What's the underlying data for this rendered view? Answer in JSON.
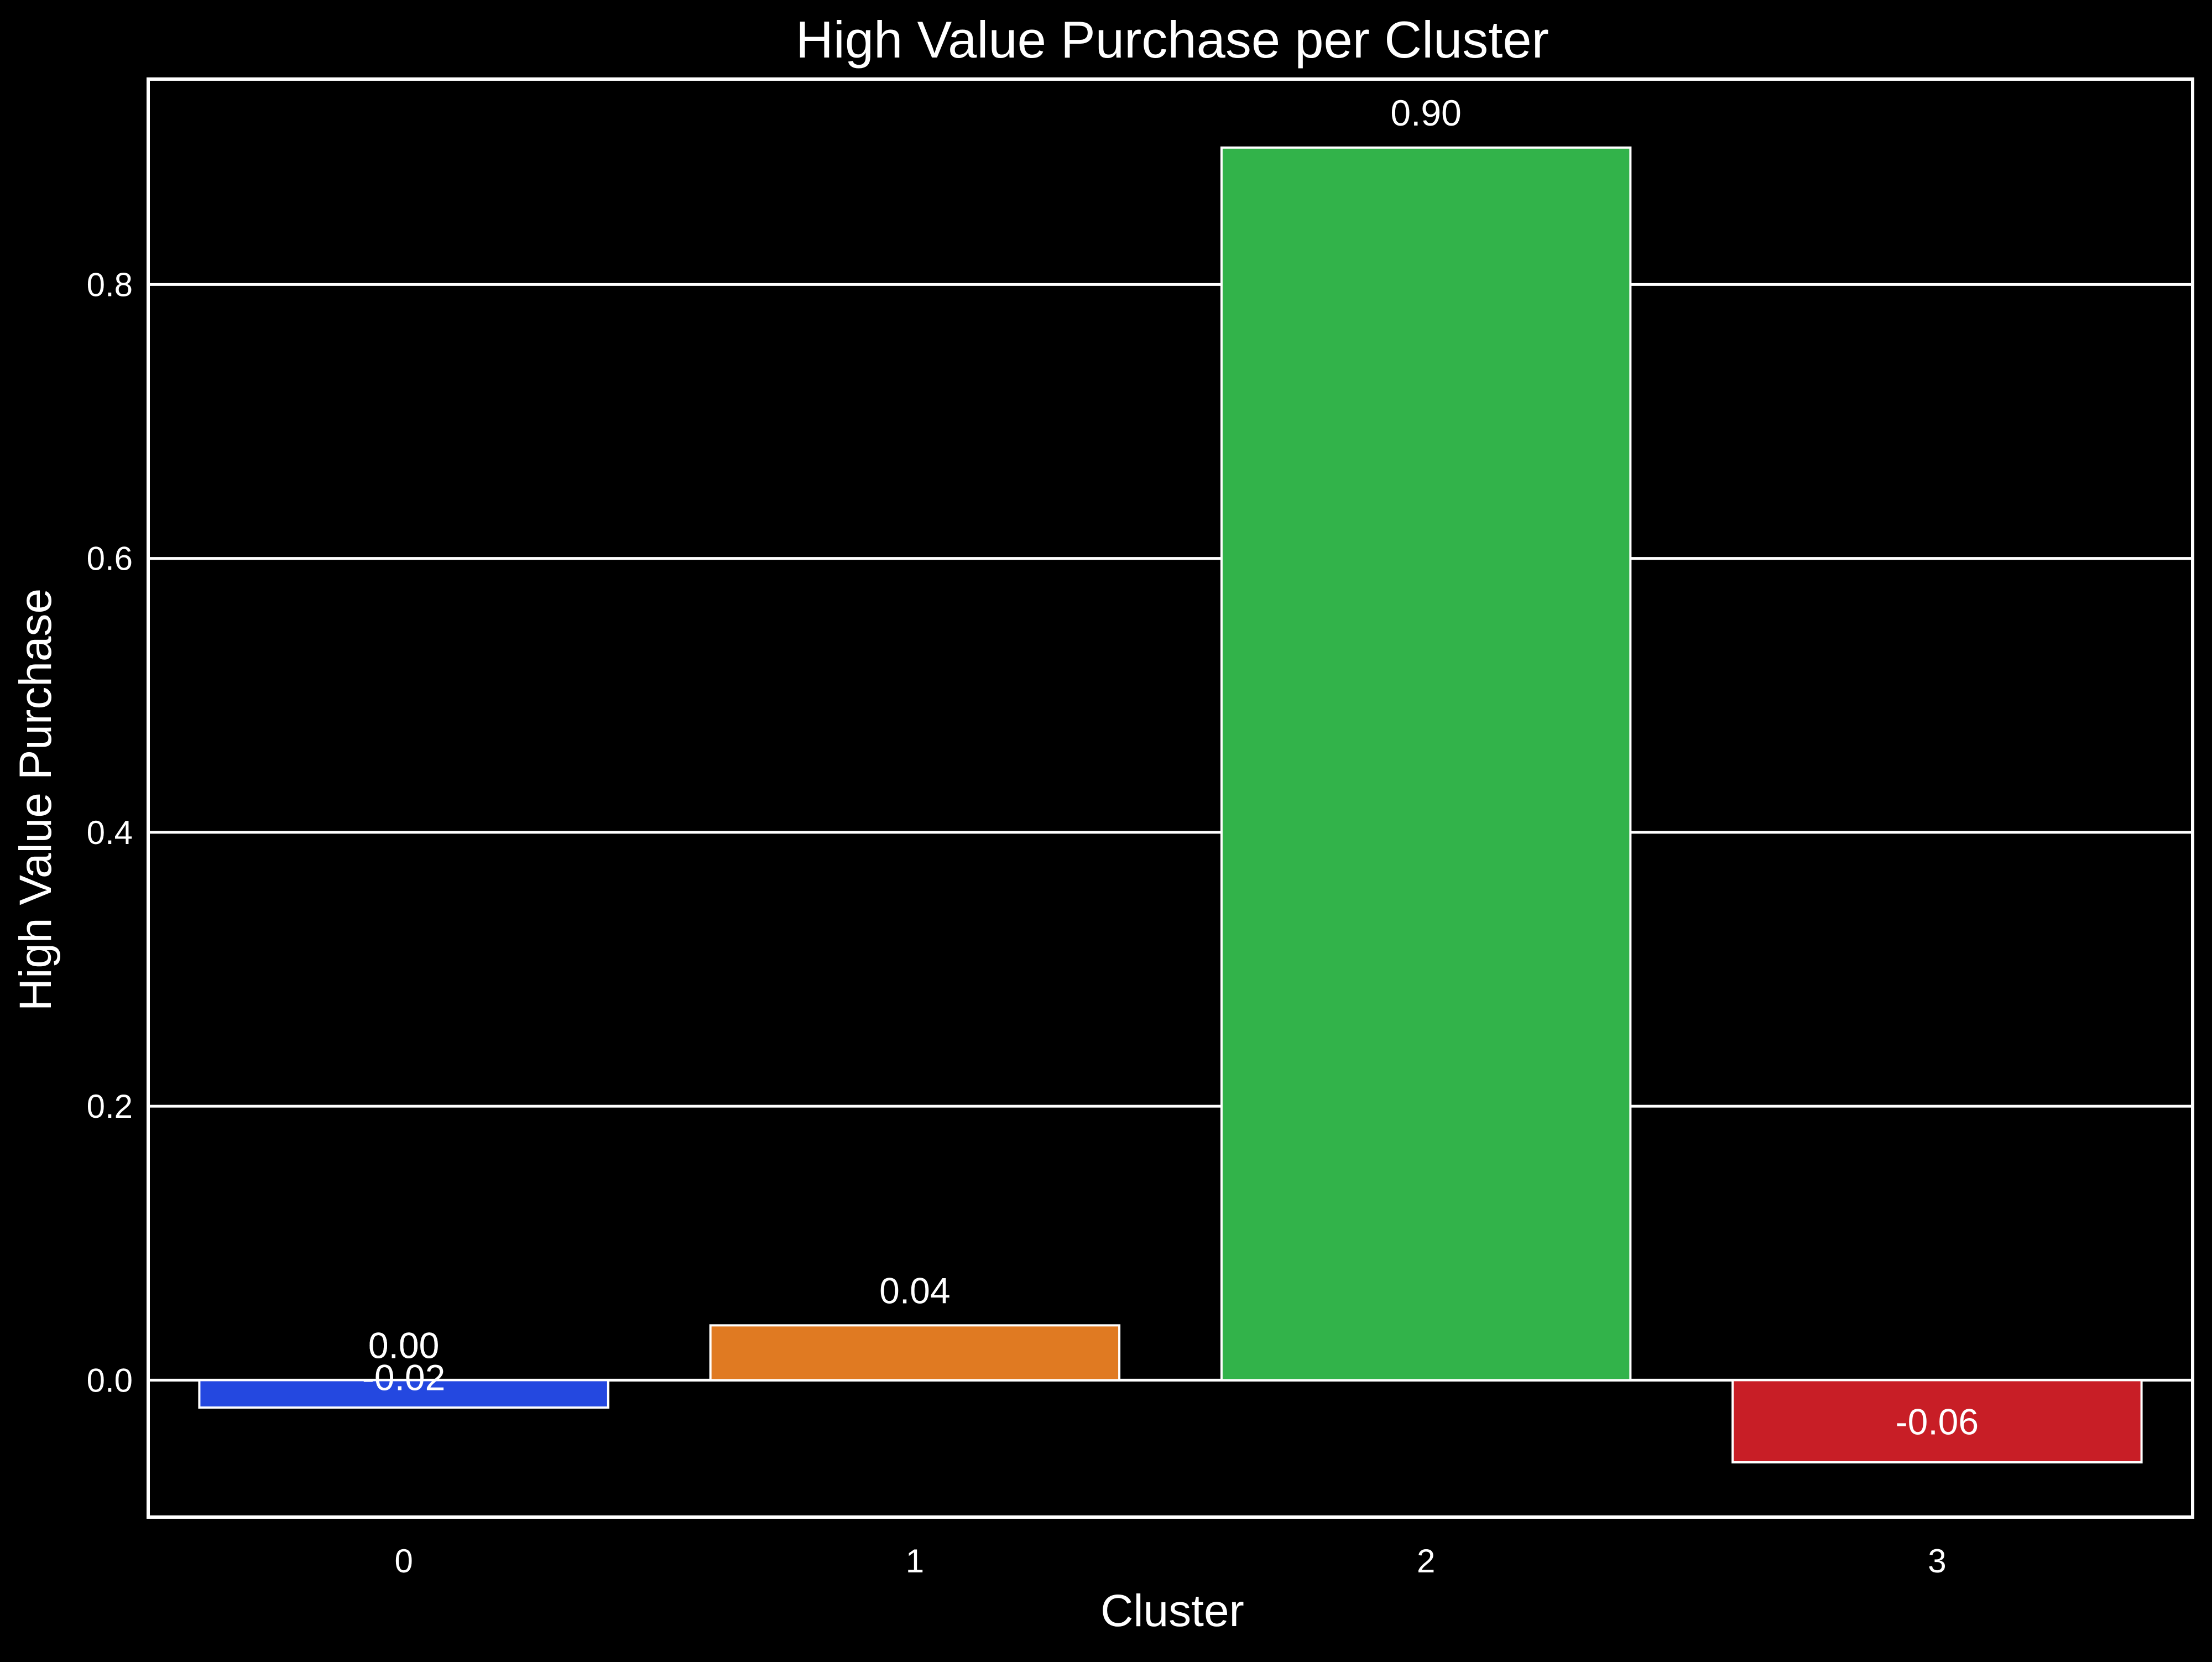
{
  "chart_data": {
    "type": "bar",
    "title": "High Value Purchase per Cluster",
    "xlabel": "Cluster",
    "ylabel": "High Value Purchase",
    "categories": [
      "0",
      "1",
      "2",
      "3"
    ],
    "values": [
      -0.02,
      0.04,
      0.9,
      -0.06
    ],
    "data_labels": [
      {
        "category": "0",
        "texts": [
          "0.00",
          "0.00",
          "-0.02"
        ]
      },
      {
        "category": "1",
        "texts": [
          "0.04"
        ]
      },
      {
        "category": "2",
        "texts": [
          "0.90"
        ]
      },
      {
        "category": "3",
        "texts": [
          "-0.06"
        ]
      }
    ],
    "bar_colors": [
      "#2448e0",
      "#e07a22",
      "#32b34a",
      "#c81e26"
    ],
    "ylim": [
      -0.1,
      0.95
    ],
    "yticks": [
      {
        "value": 0.0,
        "label": "0.0"
      },
      {
        "value": 0.2,
        "label": "0.2"
      },
      {
        "value": 0.4,
        "label": "0.4"
      },
      {
        "value": 0.6,
        "label": "0.6"
      },
      {
        "value": 0.8,
        "label": "0.8"
      }
    ],
    "grid": "horizontal",
    "legend": "none",
    "colors": {
      "background": "#000000",
      "text": "#ffffff",
      "grid": "#ffffff",
      "frame": "#ffffff"
    }
  }
}
